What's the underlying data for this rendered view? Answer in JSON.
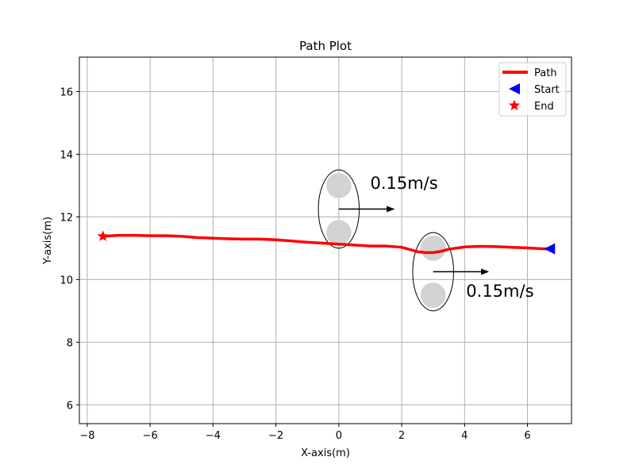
{
  "chart_data": {
    "type": "line",
    "title": "Path Plot",
    "xlabel": "X-axis(m)",
    "ylabel": "Y-axis(m)",
    "xlim": [
      -8.25,
      7.4
    ],
    "ylim": [
      5.4,
      17.1
    ],
    "xticks": [
      -8,
      -6,
      -4,
      -2,
      0,
      2,
      4,
      6
    ],
    "xtick_labels": [
      "−8",
      "−6",
      "−4",
      "−2",
      "0",
      "2",
      "4",
      "6"
    ],
    "yticks": [
      6,
      8,
      10,
      12,
      14,
      16
    ],
    "ytick_labels": [
      "6",
      "8",
      "10",
      "12",
      "14",
      "16"
    ],
    "grid": true,
    "legend_position": "top-right",
    "series": [
      {
        "name": "Path",
        "color": "#ff0000",
        "x": [
          -7.5,
          -7.0,
          -6.5,
          -6.0,
          -5.5,
          -5.0,
          -4.5,
          -4.0,
          -3.5,
          -3.0,
          -2.5,
          -2.0,
          -1.5,
          -1.0,
          -0.5,
          0.0,
          0.5,
          1.0,
          1.5,
          2.0,
          2.5,
          2.75,
          3.0,
          3.25,
          3.5,
          4.0,
          4.5,
          5.0,
          5.5,
          6.0,
          6.5,
          6.7
        ],
        "y": [
          11.38,
          11.41,
          11.41,
          11.4,
          11.4,
          11.38,
          11.34,
          11.32,
          11.3,
          11.29,
          11.29,
          11.27,
          11.23,
          11.19,
          11.16,
          11.13,
          11.1,
          11.07,
          11.07,
          11.03,
          10.89,
          10.86,
          10.86,
          10.9,
          10.97,
          11.04,
          11.06,
          11.05,
          11.03,
          11.01,
          10.98,
          10.98
        ]
      }
    ],
    "markers": [
      {
        "name": "Start",
        "shape": "triangle-left",
        "color": "#0000ff",
        "x": 6.7,
        "y": 10.98
      },
      {
        "name": "End",
        "shape": "star",
        "color": "#ff0000",
        "x": -7.5,
        "y": 11.38
      }
    ],
    "obstacle_groups": [
      {
        "ellipse_center": [
          0.0,
          12.25
        ],
        "ellipse_radii": [
          0.65,
          1.25
        ],
        "circles": [
          {
            "x": 0.0,
            "y": 13.0,
            "r": 0.4
          },
          {
            "x": 0.0,
            "y": 11.5,
            "r": 0.4
          }
        ],
        "arrow_from": [
          0.0,
          12.25
        ],
        "arrow_to": [
          1.75,
          12.25
        ],
        "label": "0.15m/s",
        "label_pos": [
          1.0,
          12.9
        ]
      },
      {
        "ellipse_center": [
          3.0,
          10.25
        ],
        "ellipse_radii": [
          0.65,
          1.25
        ],
        "circles": [
          {
            "x": 3.0,
            "y": 11.0,
            "r": 0.4
          },
          {
            "x": 3.0,
            "y": 9.5,
            "r": 0.4
          }
        ],
        "arrow_from": [
          3.0,
          10.25
        ],
        "arrow_to": [
          4.75,
          10.25
        ],
        "label": "0.15m/s",
        "label_pos": [
          4.05,
          9.45
        ]
      }
    ],
    "legend": [
      "Path",
      "Start",
      "End"
    ]
  }
}
